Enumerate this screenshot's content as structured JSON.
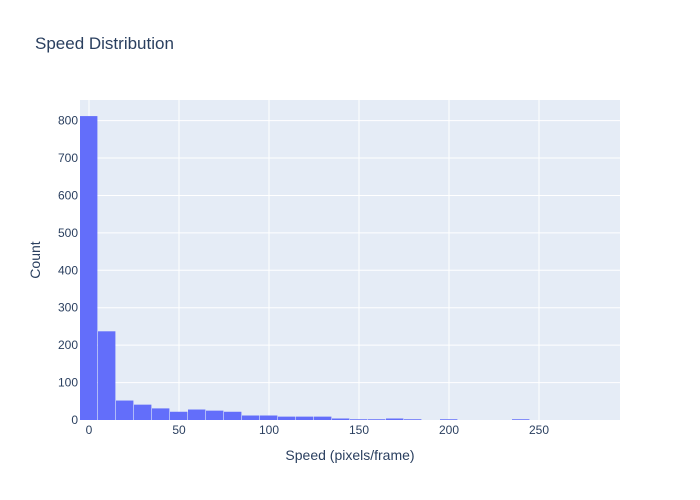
{
  "chart_data": {
    "type": "bar",
    "title": "Speed Distribution",
    "xlabel": "Speed (pixels/frame)",
    "ylabel": "Count",
    "xlim": [
      -5,
      295
    ],
    "ylim": [
      0,
      855
    ],
    "x_ticks": [
      0,
      50,
      100,
      150,
      200,
      250
    ],
    "y_ticks": [
      0,
      100,
      200,
      300,
      400,
      500,
      600,
      700,
      800
    ],
    "bin_width": 10,
    "grid": true,
    "colors": {
      "bar": "#636efa",
      "plot_bg": "#e5ecf6",
      "grid": "#ffffff",
      "text": "#2a3f5f"
    },
    "bins": [
      {
        "start": -5,
        "count": 812
      },
      {
        "start": 5,
        "count": 237
      },
      {
        "start": 15,
        "count": 52
      },
      {
        "start": 25,
        "count": 41
      },
      {
        "start": 35,
        "count": 31
      },
      {
        "start": 45,
        "count": 22
      },
      {
        "start": 55,
        "count": 28
      },
      {
        "start": 65,
        "count": 25
      },
      {
        "start": 75,
        "count": 22
      },
      {
        "start": 85,
        "count": 12
      },
      {
        "start": 95,
        "count": 12
      },
      {
        "start": 105,
        "count": 9
      },
      {
        "start": 115,
        "count": 9
      },
      {
        "start": 125,
        "count": 9
      },
      {
        "start": 135,
        "count": 4
      },
      {
        "start": 145,
        "count": 2
      },
      {
        "start": 155,
        "count": 2
      },
      {
        "start": 165,
        "count": 4
      },
      {
        "start": 175,
        "count": 2
      },
      {
        "start": 185,
        "count": 0
      },
      {
        "start": 195,
        "count": 2
      },
      {
        "start": 205,
        "count": 0
      },
      {
        "start": 215,
        "count": 0
      },
      {
        "start": 225,
        "count": 0
      },
      {
        "start": 235,
        "count": 2
      },
      {
        "start": 245,
        "count": 0
      },
      {
        "start": 255,
        "count": 0
      },
      {
        "start": 265,
        "count": 0
      },
      {
        "start": 275,
        "count": 0
      },
      {
        "start": 285,
        "count": 0
      }
    ]
  }
}
